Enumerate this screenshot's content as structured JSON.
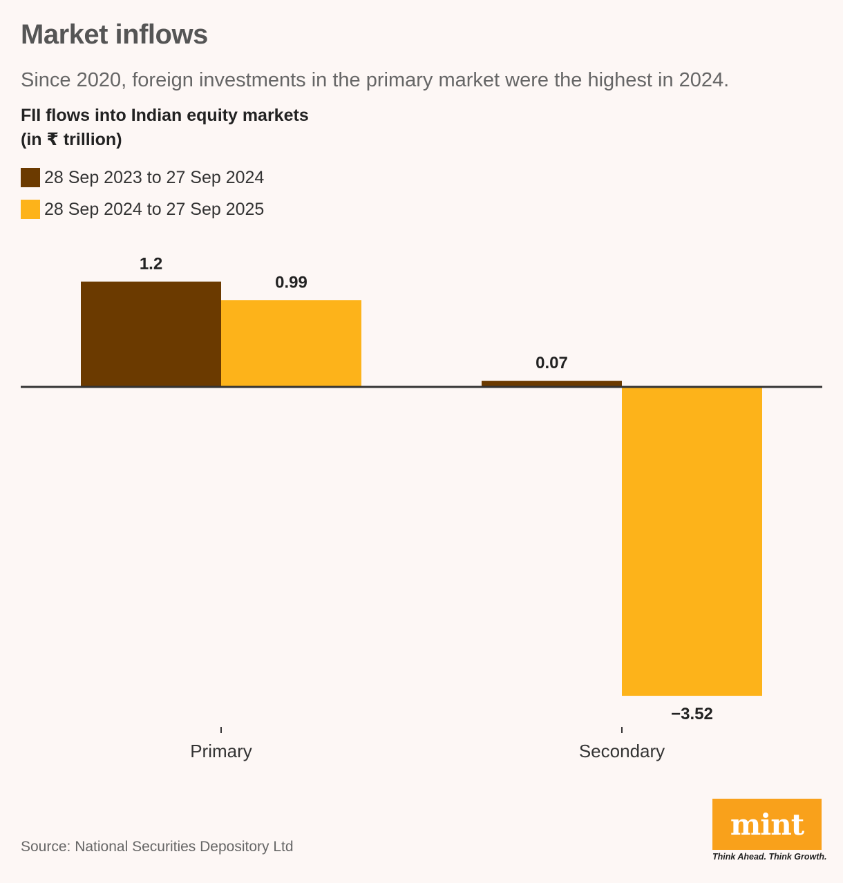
{
  "title": "Market inflows",
  "subtitle": "Since 2020, foreign investments in the primary market were the highest in 2024.",
  "chart_heading_line1": "FII flows into Indian equity markets",
  "chart_heading_line2": "(in ₹ trillion)",
  "source": "Source: National Securities Depository Ltd",
  "logo": {
    "text": "mint",
    "tagline": "Think Ahead. Think Growth."
  },
  "colors": {
    "series1": "#6b3a00",
    "series2": "#fdb31a",
    "axis": "#333333",
    "background": "#fdf7f5",
    "brand": "#f9a11b"
  },
  "chart_data": {
    "type": "bar",
    "title": "FII flows into Indian equity markets (in ₹ trillion)",
    "xlabel": "",
    "ylabel": "₹ trillion",
    "categories": [
      "Primary",
      "Secondary"
    ],
    "series": [
      {
        "name": "28 Sep 2023 to 27 Sep 2024",
        "values": [
          1.2,
          0.07
        ],
        "labels": [
          "1.2",
          "0.07"
        ]
      },
      {
        "name": "28 Sep 2024 to 27 Sep 2025",
        "values": [
          0.99,
          -3.52
        ],
        "labels": [
          "0.99",
          "−3.52"
        ]
      }
    ],
    "ylim": [
      -3.52,
      1.2
    ],
    "grid": false,
    "legend": "top-left"
  }
}
